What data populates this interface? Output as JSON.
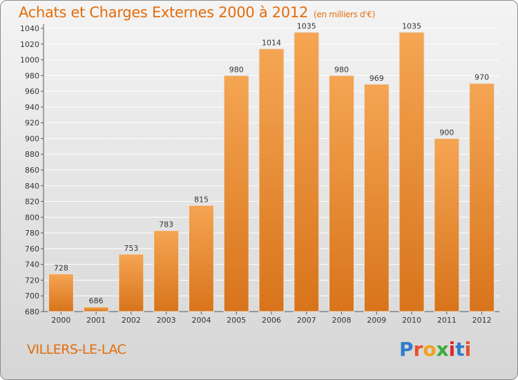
{
  "header": {
    "title": "Achats et Charges Externes 2000 à 2012",
    "subtitle": "(en milliers d'€)"
  },
  "footer": {
    "commune": "VILLERS-LE-LAC",
    "logo_letters": [
      "P",
      "r",
      "o",
      "x",
      "i",
      "t",
      "i"
    ],
    "logo_colors": [
      "#2e7ec9",
      "#e8502a",
      "#f2a01e",
      "#3aaa3a",
      "#d9282a",
      "#2e7ec9",
      "#e8502a"
    ]
  },
  "colors": {
    "title": "#e36c0a",
    "bar_light": "#f5a553",
    "bar_dark": "#d8741b",
    "grid": "#ffffff",
    "axis": "#555555"
  },
  "chart_data": {
    "type": "bar",
    "categories": [
      "2000",
      "2001",
      "2002",
      "2003",
      "2004",
      "2005",
      "2006",
      "2007",
      "2008",
      "2009",
      "2010",
      "2011",
      "2012"
    ],
    "values": [
      728,
      686,
      753,
      783,
      815,
      980,
      1014,
      1035,
      980,
      969,
      1035,
      900,
      970
    ],
    "ylim": [
      680,
      1040
    ],
    "yticks": [
      680,
      700,
      720,
      740,
      760,
      780,
      800,
      820,
      840,
      860,
      880,
      900,
      920,
      940,
      960,
      980,
      1000,
      1020,
      1040
    ],
    "grid": true,
    "legend": "none"
  }
}
